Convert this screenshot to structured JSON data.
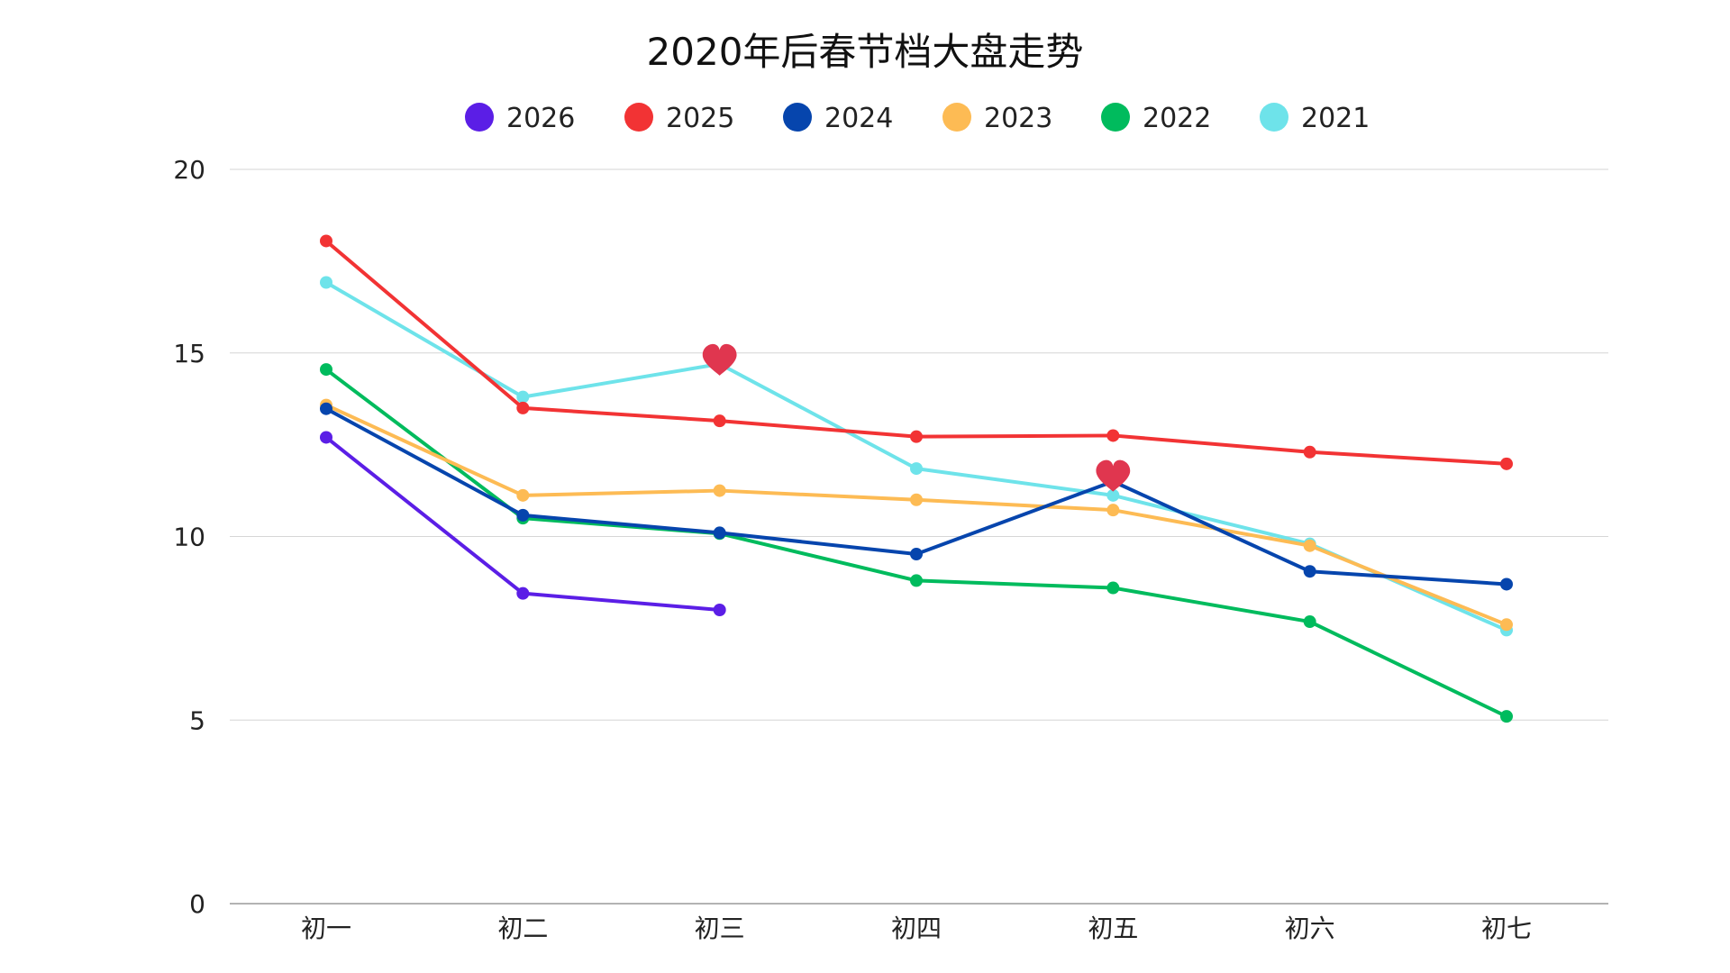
{
  "chart_data": {
    "type": "line",
    "title": "2020年后春节档大盘走势",
    "categories": [
      "初一",
      "初二",
      "初三",
      "初四",
      "初五",
      "初六",
      "初七"
    ],
    "ylim": [
      0,
      20
    ],
    "yticks": [
      "0",
      "5",
      "10",
      "15",
      "20"
    ],
    "grid": true,
    "legend_position": "top",
    "series": [
      {
        "name": "2026",
        "color": "#5b1ee6",
        "values": [
          12.7,
          8.45,
          8.0,
          null,
          null,
          null,
          null
        ]
      },
      {
        "name": "2025",
        "color": "#f23334",
        "values": [
          18.05,
          13.5,
          13.15,
          12.72,
          12.75,
          12.3,
          11.98
        ]
      },
      {
        "name": "2024",
        "color": "#0645ad",
        "values": [
          13.48,
          10.58,
          10.1,
          9.52,
          11.5,
          9.05,
          8.7
        ]
      },
      {
        "name": "2023",
        "color": "#fdbb54",
        "values": [
          13.58,
          11.12,
          11.25,
          11.0,
          10.72,
          9.75,
          7.6
        ]
      },
      {
        "name": "2022",
        "color": "#00bb5d",
        "values": [
          14.55,
          10.5,
          10.08,
          8.8,
          8.6,
          7.68,
          5.1
        ]
      },
      {
        "name": "2021",
        "color": "#6ee3ea",
        "values": [
          16.92,
          13.8,
          14.7,
          11.85,
          11.12,
          9.8,
          7.45
        ]
      }
    ],
    "annotations": [
      {
        "type": "heart-icon",
        "category": "初三",
        "value": 14.78,
        "color": "#e0364f"
      },
      {
        "type": "heart-icon",
        "category": "初五",
        "value": 11.62,
        "color": "#e0364f"
      }
    ]
  }
}
